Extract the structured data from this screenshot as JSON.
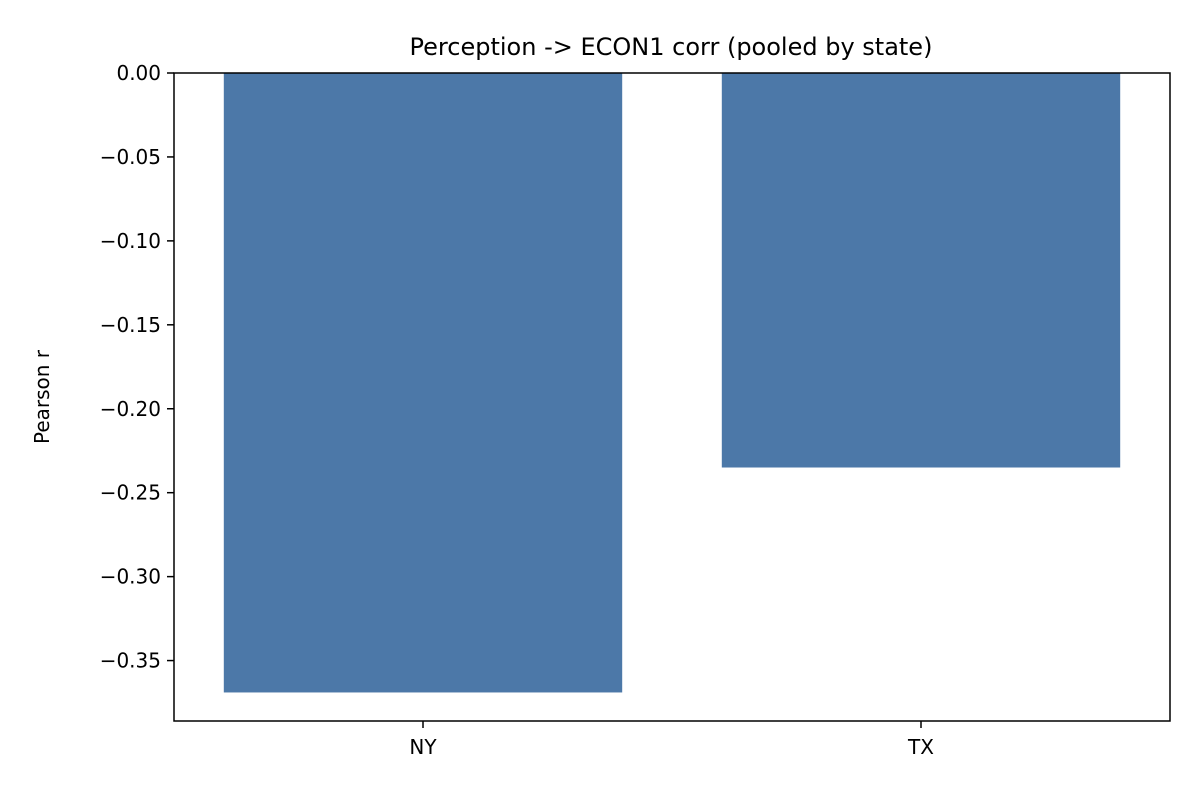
{
  "chart_data": {
    "type": "bar",
    "title": "Perception -> ECON1 corr (pooled by state)",
    "xlabel": "",
    "ylabel": "Pearson r",
    "categories": [
      "NY",
      "TX"
    ],
    "values": [
      -0.369,
      -0.235
    ],
    "ylim": [
      -0.386,
      0.0
    ],
    "yticks": [
      0.0,
      -0.05,
      -0.1,
      -0.15,
      -0.2,
      -0.25,
      -0.3,
      -0.35
    ],
    "ytick_labels": [
      "0.00",
      "−0.05",
      "−0.10",
      "−0.15",
      "−0.20",
      "−0.25",
      "−0.30",
      "−0.35"
    ],
    "bar_color": "#4c78a8",
    "grid": false,
    "legend": "none"
  }
}
